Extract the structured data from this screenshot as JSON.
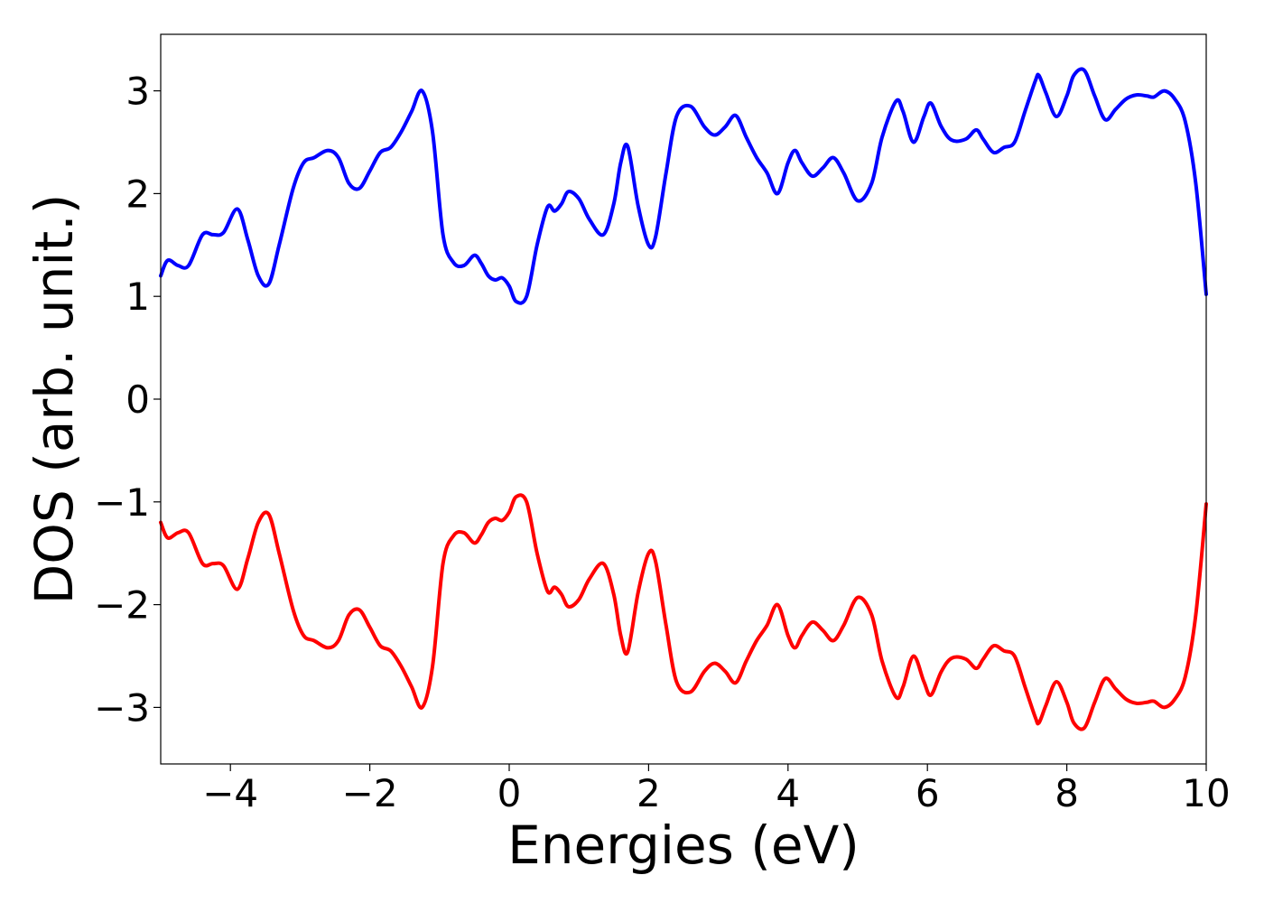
{
  "chart_data": {
    "type": "line",
    "title": "",
    "xlabel": "Energies (eV)",
    "ylabel": "DOS (arb. unit.)",
    "xlim": [
      -5,
      10
    ],
    "ylim": [
      -3.55,
      3.55
    ],
    "grid": false,
    "legend": "none",
    "x_ticks": [
      -4,
      -2,
      0,
      2,
      4,
      6,
      8,
      10
    ],
    "x_tick_labels": [
      "−4",
      "−2",
      "0",
      "2",
      "4",
      "6",
      "8",
      "10"
    ],
    "y_ticks": [
      3,
      2,
      1,
      0,
      -1,
      -2,
      -3
    ],
    "y_tick_labels": [
      "3",
      "2",
      "1",
      "0",
      "−1",
      "−2",
      "−3"
    ],
    "x": [
      -5.0,
      -4.9,
      -4.75,
      -4.6,
      -4.4,
      -4.25,
      -4.1,
      -3.9,
      -3.75,
      -3.6,
      -3.45,
      -3.3,
      -3.1,
      -2.95,
      -2.8,
      -2.6,
      -2.45,
      -2.3,
      -2.15,
      -2.0,
      -1.85,
      -1.7,
      -1.55,
      -1.4,
      -1.25,
      -1.1,
      -0.95,
      -0.8,
      -0.65,
      -0.5,
      -0.4,
      -0.3,
      -0.2,
      -0.1,
      0.0,
      0.1,
      0.25,
      0.4,
      0.55,
      0.65,
      0.75,
      0.85,
      1.0,
      1.15,
      1.35,
      1.5,
      1.6,
      1.7,
      1.85,
      2.0,
      2.1,
      2.25,
      2.4,
      2.6,
      2.8,
      2.95,
      3.1,
      3.25,
      3.4,
      3.55,
      3.7,
      3.85,
      4.0,
      4.1,
      4.2,
      4.35,
      4.5,
      4.65,
      4.8,
      5.0,
      5.2,
      5.35,
      5.55,
      5.65,
      5.8,
      5.95,
      6.05,
      6.2,
      6.35,
      6.55,
      6.7,
      6.8,
      6.95,
      7.1,
      7.25,
      7.4,
      7.55,
      7.6,
      7.7,
      7.85,
      8.0,
      8.1,
      8.25,
      8.4,
      8.55,
      8.7,
      8.85,
      9.0,
      9.15,
      9.25,
      9.4,
      9.55,
      9.7,
      9.85,
      10.0
    ],
    "series": [
      {
        "color": "#0000ff",
        "values": [
          1.2,
          1.35,
          1.3,
          1.3,
          1.6,
          1.6,
          1.62,
          1.85,
          1.55,
          1.2,
          1.12,
          1.5,
          2.05,
          2.3,
          2.35,
          2.42,
          2.35,
          2.1,
          2.05,
          2.22,
          2.4,
          2.45,
          2.6,
          2.8,
          3.0,
          2.6,
          1.6,
          1.33,
          1.3,
          1.4,
          1.32,
          1.2,
          1.16,
          1.18,
          1.1,
          0.95,
          1.0,
          1.5,
          1.87,
          1.83,
          1.9,
          2.02,
          1.95,
          1.75,
          1.6,
          1.9,
          2.3,
          2.46,
          1.88,
          1.5,
          1.58,
          2.2,
          2.75,
          2.85,
          2.65,
          2.57,
          2.65,
          2.76,
          2.55,
          2.35,
          2.2,
          2.0,
          2.3,
          2.42,
          2.3,
          2.17,
          2.25,
          2.35,
          2.2,
          1.93,
          2.1,
          2.55,
          2.9,
          2.8,
          2.5,
          2.75,
          2.88,
          2.65,
          2.52,
          2.53,
          2.62,
          2.53,
          2.4,
          2.45,
          2.5,
          2.8,
          3.1,
          3.15,
          2.98,
          2.75,
          2.95,
          3.15,
          3.2,
          2.95,
          2.72,
          2.82,
          2.92,
          2.96,
          2.95,
          2.94,
          3.0,
          2.92,
          2.7,
          2.1,
          1.02
        ]
      },
      {
        "color": "#ff0000",
        "values": [
          -1.2,
          -1.35,
          -1.3,
          -1.3,
          -1.6,
          -1.6,
          -1.62,
          -1.85,
          -1.55,
          -1.2,
          -1.12,
          -1.5,
          -2.05,
          -2.3,
          -2.35,
          -2.42,
          -2.35,
          -2.1,
          -2.05,
          -2.22,
          -2.4,
          -2.45,
          -2.6,
          -2.8,
          -3.0,
          -2.6,
          -1.6,
          -1.33,
          -1.3,
          -1.4,
          -1.32,
          -1.2,
          -1.16,
          -1.18,
          -1.1,
          -0.95,
          -1.0,
          -1.5,
          -1.87,
          -1.83,
          -1.9,
          -2.02,
          -1.95,
          -1.75,
          -1.6,
          -1.9,
          -2.3,
          -2.46,
          -1.88,
          -1.5,
          -1.58,
          -2.2,
          -2.75,
          -2.85,
          -2.65,
          -2.57,
          -2.65,
          -2.76,
          -2.55,
          -2.35,
          -2.2,
          -2.0,
          -2.3,
          -2.42,
          -2.3,
          -2.17,
          -2.25,
          -2.35,
          -2.2,
          -1.93,
          -2.1,
          -2.55,
          -2.9,
          -2.8,
          -2.5,
          -2.75,
          -2.88,
          -2.65,
          -2.52,
          -2.53,
          -2.62,
          -2.53,
          -2.4,
          -2.45,
          -2.5,
          -2.8,
          -3.1,
          -3.15,
          -2.98,
          -2.75,
          -2.95,
          -3.15,
          -3.2,
          -2.95,
          -2.72,
          -2.82,
          -2.92,
          -2.96,
          -2.95,
          -2.94,
          -3.0,
          -2.92,
          -2.7,
          -2.1,
          -1.02
        ]
      }
    ]
  }
}
